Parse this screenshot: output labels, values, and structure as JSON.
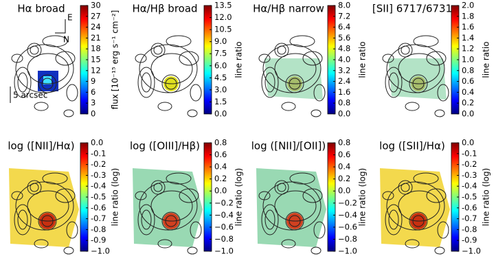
{
  "chart_data": [
    {
      "type": "heatmap",
      "title": "Hα broad",
      "colorbar_label": "flux [10⁻¹⁵ erg s⁻¹ cm⁻²]",
      "clim": [
        0,
        30
      ],
      "cticks": [
        0,
        3,
        6,
        9,
        12,
        15,
        18,
        21,
        24,
        27,
        30
      ],
      "annotations": [
        "E",
        "N",
        "5 arcsec"
      ]
    },
    {
      "type": "heatmap",
      "title": "Hα/Hβ broad",
      "colorbar_label": "line ratio",
      "clim": [
        0,
        13.5
      ],
      "cticks": [
        {
          "value": 0,
          "label": "0.0"
        },
        1.5,
        {
          "value": 3,
          "label": "3.0"
        },
        4.5,
        {
          "value": 6,
          "label": "6.0"
        },
        7.5,
        {
          "value": 9,
          "label": "9.0"
        },
        10.5,
        {
          "value": 12,
          "label": "12.0"
        },
        13.5
      ]
    },
    {
      "type": "heatmap",
      "title": "Hα/Hβ narrow",
      "colorbar_label": "line ratio",
      "clim": [
        0,
        8
      ],
      "cticks": [
        {
          "value": 0,
          "label": "0.0"
        },
        0.8,
        1.6,
        2.4,
        3.2,
        {
          "value": 4,
          "label": "4.0"
        },
        4.8,
        5.6,
        6.4,
        7.2,
        {
          "value": 8,
          "label": "8.0"
        }
      ]
    },
    {
      "type": "heatmap",
      "title": "[SII] 6717/6731",
      "colorbar_label": "line ratio",
      "clim": [
        0,
        2
      ],
      "cticks": [
        {
          "value": 0,
          "label": "0.0"
        },
        0.2,
        0.4,
        0.6,
        0.8,
        {
          "value": 1,
          "label": "1.0"
        },
        1.2,
        1.4,
        1.6,
        1.8,
        {
          "value": 2,
          "label": "2.0"
        }
      ]
    },
    {
      "type": "heatmap",
      "title": "log ([NII]/Hα)",
      "colorbar_label": "line ratio (log)",
      "clim": [
        -1,
        0
      ],
      "cticks": [
        {
          "value": 0,
          "label": "0.0"
        },
        -0.1,
        -0.2,
        -0.3,
        -0.4,
        -0.5,
        -0.6,
        -0.7,
        -0.8,
        -0.9,
        {
          "value": -1,
          "label": "−1.0"
        }
      ]
    },
    {
      "type": "heatmap",
      "title": "log ([OIII]/Hβ)",
      "colorbar_label": "line ratio (log)",
      "clim": [
        -1,
        0.8
      ],
      "cticks": [
        0.8,
        0.6,
        0.4,
        0.2,
        {
          "value": 0,
          "label": "0.0"
        },
        {
          "value": -0.2,
          "label": "−0.2"
        },
        {
          "value": -0.4,
          "label": "−0.4"
        },
        {
          "value": -0.6,
          "label": "−0.6"
        },
        {
          "value": -0.8,
          "label": "−0.8"
        },
        {
          "value": -1,
          "label": "−1.0"
        }
      ]
    },
    {
      "type": "heatmap",
      "title": "log ([NII]/[OII])",
      "colorbar_label": "line ratio (log)",
      "clim": [
        -1,
        0.8
      ],
      "cticks": [
        0.8,
        0.6,
        0.4,
        0.2,
        {
          "value": 0,
          "label": "0.0"
        },
        {
          "value": -0.2,
          "label": "−0.2"
        },
        {
          "value": -0.4,
          "label": "−0.4"
        },
        {
          "value": -0.6,
          "label": "−0.6"
        },
        {
          "value": -0.8,
          "label": "−0.8"
        },
        {
          "value": -1,
          "label": "−1.0"
        }
      ]
    },
    {
      "type": "heatmap",
      "title": "log ([SII]/Hα)",
      "colorbar_label": "line ratio (log)",
      "clim": [
        -1,
        0
      ],
      "cticks": [
        {
          "value": 0,
          "label": "0.0"
        },
        -0.1,
        -0.2,
        -0.3,
        -0.4,
        -0.5,
        -0.6,
        -0.7,
        -0.8,
        -0.9,
        {
          "value": -1,
          "label": "−1.0"
        }
      ]
    }
  ]
}
